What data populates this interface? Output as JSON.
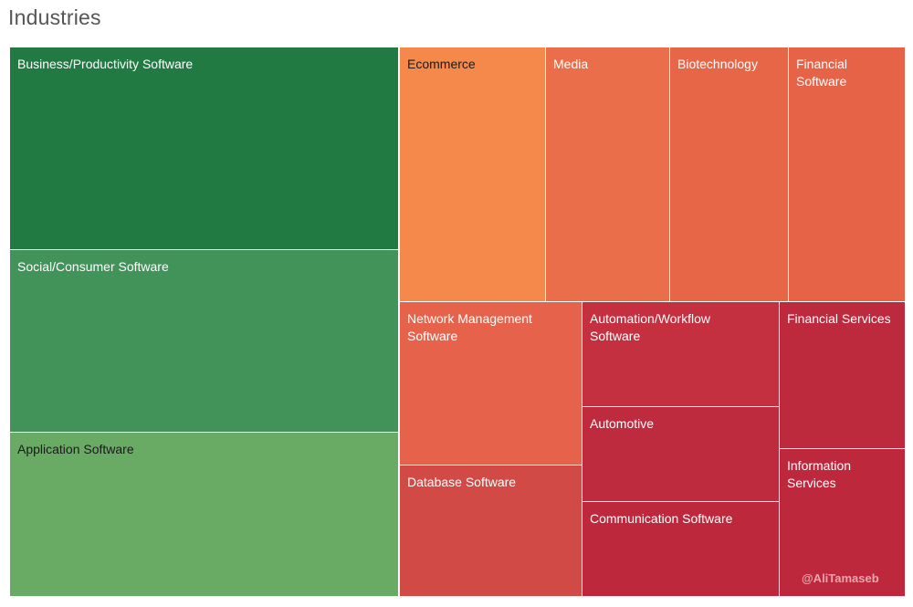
{
  "title": "Industries",
  "watermark": "@AliTamaseb",
  "chart_data": {
    "type": "treemap",
    "title": "Industries",
    "cells": [
      {
        "label": "Business/Productivity Software",
        "color": "#227a43",
        "text_color": "#ffffff"
      },
      {
        "label": "Social/Consumer Software",
        "color": "#42935a",
        "text_color": "#ffffff"
      },
      {
        "label": "Application Software",
        "color": "#69ab64",
        "text_color": "#1a1a1a"
      },
      {
        "label": "Ecommerce",
        "color": "#f4894b",
        "text_color": "#1a1a1a"
      },
      {
        "label": "Media",
        "color": "#ea6e4a",
        "text_color": "#ffffff"
      },
      {
        "label": "Biotechnology",
        "color": "#e86648",
        "text_color": "#ffffff"
      },
      {
        "label": "Financial\nSoftware",
        "color": "#e66348",
        "text_color": "#ffffff"
      },
      {
        "label": "Network Management\nSoftware",
        "color": "#e7624a",
        "text_color": "#ffffff"
      },
      {
        "label": "Automation/Workflow\nSoftware",
        "color": "#c43040",
        "text_color": "#ffffff"
      },
      {
        "label": "Financial Services",
        "color": "#be2a3d",
        "text_color": "#ffffff"
      },
      {
        "label": "Automotive",
        "color": "#bf2b3e",
        "text_color": "#ffffff"
      },
      {
        "label": "Database Software",
        "color": "#d24a45",
        "text_color": "#ffffff"
      },
      {
        "label": "Information\nServices",
        "color": "#bd283c",
        "text_color": "#ffffff"
      },
      {
        "label": "Communication Software",
        "color": "#be283c",
        "text_color": "#ffffff"
      }
    ]
  }
}
